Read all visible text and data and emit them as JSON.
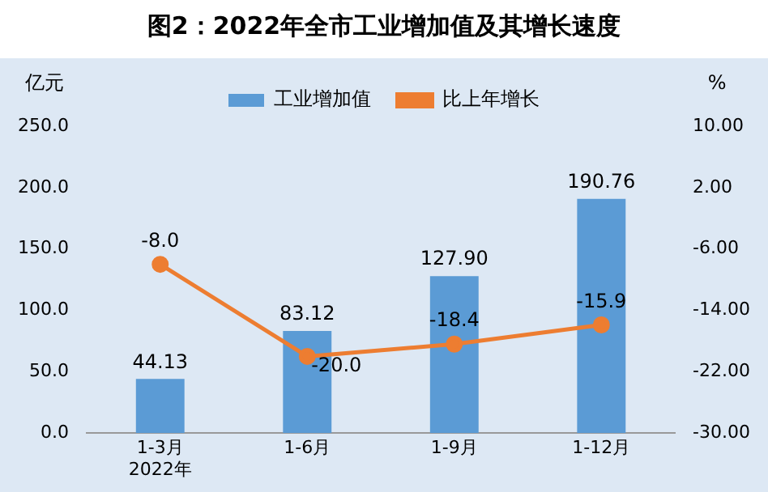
{
  "chart_data": {
    "type": "bar",
    "title": "图2：2022年全市工业增加值及其增长速度",
    "ylabel": "亿元",
    "y2label": "%",
    "categories": [
      "1-3月\n2022年",
      "1-6月",
      "1-9月",
      "1-12月"
    ],
    "series": [
      {
        "name": "工业增加值",
        "type": "bar",
        "color": "#5b9bd5",
        "values": [
          44.13,
          83.12,
          127.9,
          190.76
        ],
        "value_labels": [
          "44.13",
          "83.12",
          "127.90",
          "190.76"
        ]
      },
      {
        "name": "比上年增长",
        "type": "line",
        "axis": "y2",
        "color": "#ed7d31",
        "marker": "circle",
        "values": [
          -8.0,
          -20.0,
          -18.4,
          -15.9
        ],
        "value_labels": [
          "-8.0",
          "-20.0",
          "-18.4",
          "-15.9"
        ]
      }
    ],
    "ylim": [
      0,
      250
    ],
    "yticks": [
      {
        "value": 0,
        "label": "0.0"
      },
      {
        "value": 50,
        "label": "50.0"
      },
      {
        "value": 100,
        "label": "100.0"
      },
      {
        "value": 150,
        "label": "150.0"
      },
      {
        "value": 200,
        "label": "200.0"
      },
      {
        "value": 250,
        "label": "250.0"
      }
    ],
    "y2lim": [
      -30,
      10
    ],
    "y2ticks": [
      {
        "value": -30,
        "label": "-30.00"
      },
      {
        "value": -22,
        "label": "-22.00"
      },
      {
        "value": -14,
        "label": "-14.00"
      },
      {
        "value": -6,
        "label": "-6.00"
      },
      {
        "value": 2,
        "label": "2.00"
      },
      {
        "value": 10,
        "label": "10.00"
      }
    ],
    "grid": false,
    "legend": "top"
  }
}
